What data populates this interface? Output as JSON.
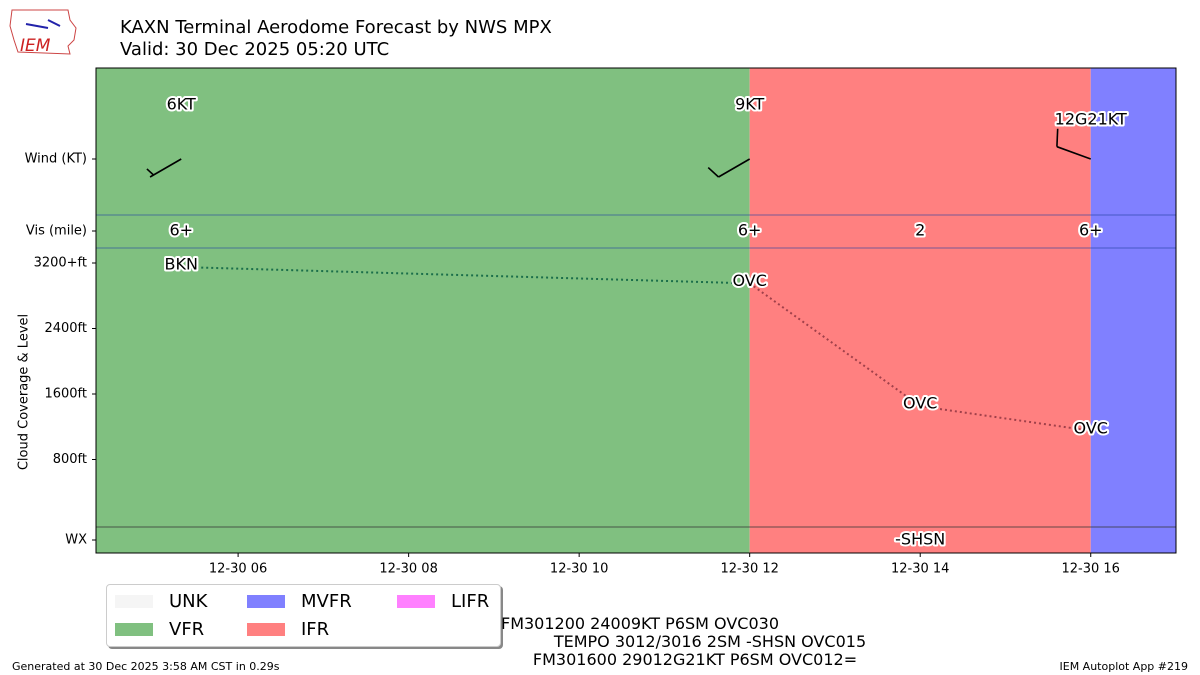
{
  "title_line1": "KAXN Terminal Aerodome Forecast by NWS MPX",
  "title_line2": "Valid: 30 Dec 2025 05:20 UTC",
  "logo_text": "IEM",
  "footer_left": "Generated at 30 Dec 2025 3:58 AM CST in 0.29s",
  "footer_right": "IEM Autoplot App #219",
  "taf_lines": [
    "FM301200 24009KT P6SM OVC030",
    "TEMPO 3012/3016 2SM -SHSN OVC015",
    "FM301600 29012G21KT P6SM OVC012="
  ],
  "legend": [
    {
      "label": "UNK",
      "color": "#f5f5f5"
    },
    {
      "label": "VFR",
      "color": "#80c080"
    },
    {
      "label": "MVFR",
      "color": "#8080ff"
    },
    {
      "label": "IFR",
      "color": "#ff8080"
    },
    {
      "label": "LIFR",
      "color": "#ff80ff"
    }
  ],
  "chart_data": {
    "type": "timeline",
    "xlim": [
      "12-30 04:20",
      "12-30 17:00"
    ],
    "xticks": [
      {
        "hour": 6,
        "label": "12-30 06"
      },
      {
        "hour": 8,
        "label": "12-30 08"
      },
      {
        "hour": 10,
        "label": "12-30 10"
      },
      {
        "hour": 12,
        "label": "12-30 12"
      },
      {
        "hour": 14,
        "label": "12-30 14"
      },
      {
        "hour": 16,
        "label": "12-30 16"
      }
    ],
    "row_labels": {
      "wind": "Wind (KT)",
      "vis": "Vis (mile)",
      "wx": "WX"
    },
    "ylabel": "Cloud Coverage & Level",
    "cloud_ticks": [
      {
        "ft": 3200,
        "label": "3200+ft"
      },
      {
        "ft": 2400,
        "label": "2400ft"
      },
      {
        "ft": 1600,
        "label": "1600ft"
      },
      {
        "ft": 800,
        "label": "800ft"
      }
    ],
    "categories": [
      {
        "start": 4.333,
        "end": 12,
        "category": "VFR",
        "color": "#80c080"
      },
      {
        "start": 12,
        "end": 16,
        "category": "IFR",
        "color": "#ff8080"
      },
      {
        "start": 16,
        "end": 17,
        "category": "MVFR",
        "color": "#8080ff"
      }
    ],
    "wind": [
      {
        "hour": 5.333,
        "dir": 240,
        "speed": 6,
        "label": "6KT"
      },
      {
        "hour": 12,
        "dir": 240,
        "speed": 9,
        "label": "9KT"
      },
      {
        "hour": 16,
        "dir": 290,
        "speed": 12,
        "gust": 21,
        "label": "12G21KT"
      }
    ],
    "vis": [
      {
        "hour": 5.333,
        "label": "6+"
      },
      {
        "hour": 12,
        "label": "6+"
      },
      {
        "hour": 14,
        "label": "2"
      },
      {
        "hour": 16,
        "label": "6+"
      }
    ],
    "clouds": [
      {
        "hour": 5.333,
        "ft": 3200,
        "cover": "BKN",
        "line_color": "#1a6e4a"
      },
      {
        "hour": 12,
        "ft": 3000,
        "cover": "OVC",
        "line_color": "#a0404a"
      },
      {
        "hour": 14,
        "ft": 1500,
        "cover": "OVC",
        "line_color": "#a0404a"
      },
      {
        "hour": 16,
        "ft": 1200,
        "cover": "OVC"
      }
    ],
    "wx": [
      {
        "hour": 14,
        "label": "-SHSN"
      }
    ]
  }
}
